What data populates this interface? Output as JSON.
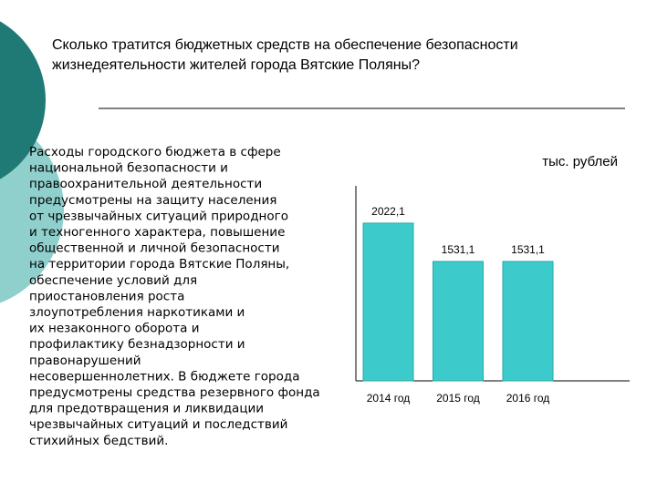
{
  "title_lines": [
    "Сколько тратится бюджетных средств на обеспечение безопасности",
    "жизнедеятельности жителей города Вятские Поляны?"
  ],
  "body_lines": [
    "Расходы городского бюджета в сфере",
    "национальной безопасности и",
    "правоохранительной деятельности",
    "предусмотрены на защиту населения",
    "от чрезвычайных ситуаций природного",
    "и техногенного характера, повышение",
    "общественной и личной безопасности",
    "на территории города Вятские Поляны,",
    "обеспечение условий для",
    "приостановления роста",
    "злоупотребления наркотиками и",
    "их незаконного оборота и",
    "профилактику безнадзорности и",
    "правонарушений",
    "несовершеннолетних. В бюджете города",
    "предусмотрены средства резервного фонда",
    "для предотвращения и ликвидации",
    "чрезвычайных ситуаций и последствий",
    "стихийных бедствий."
  ],
  "chart_data": {
    "type": "bar",
    "unit_label": "тыс. рублей",
    "categories": [
      "2014 год",
      "2015 год",
      "2016 год"
    ],
    "values": [
      2022.1,
      1531.1,
      1531.1
    ],
    "value_labels": [
      "2022,1",
      "1531,1",
      "1531,1"
    ],
    "color": "#3ccaca",
    "ylim": [
      0,
      2500
    ]
  }
}
